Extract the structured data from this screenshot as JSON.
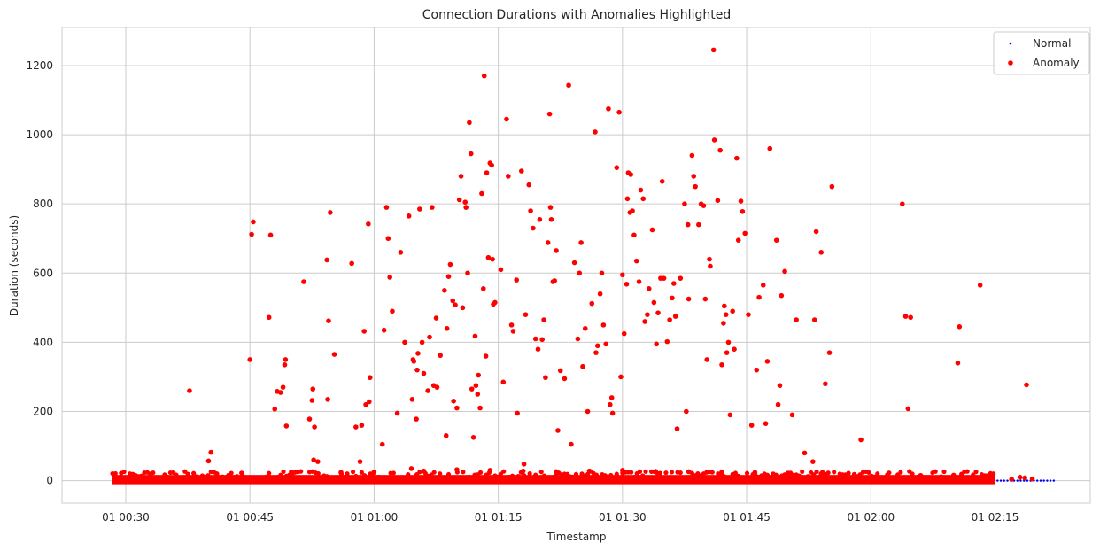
{
  "chart_data": {
    "type": "scatter",
    "title": "Connection Durations with Anomalies Highlighted",
    "xlabel": "Timestamp",
    "ylabel": "Duration (seconds)",
    "x_unit": "minutes",
    "xlim": [
      22.3,
      146.5
    ],
    "ylim": [
      -65,
      1310
    ],
    "x_ticks": [
      {
        "value": 30,
        "label": "01 00:30"
      },
      {
        "value": 45,
        "label": "01 00:45"
      },
      {
        "value": 60,
        "label": "01 01:00"
      },
      {
        "value": 75,
        "label": "01 01:15"
      },
      {
        "value": 90,
        "label": "01 01:30"
      },
      {
        "value": 105,
        "label": "01 01:45"
      },
      {
        "value": 120,
        "label": "01 02:00"
      },
      {
        "value": 135,
        "label": "01 02:15"
      }
    ],
    "y_ticks": [
      0,
      200,
      400,
      600,
      800,
      1000,
      1200
    ],
    "grid": true,
    "legend": {
      "position": "top-right",
      "entries": [
        {
          "name": "Normal",
          "color": "#0000ff"
        },
        {
          "name": "Anomaly",
          "color": "#ff0000"
        }
      ]
    },
    "dense_band": {
      "series": "Anomaly",
      "x_range": [
        28.4,
        135.0
      ],
      "y_range": [
        0,
        30
      ],
      "note": "Dense band of anomaly points with durations near 0"
    },
    "series": [
      {
        "name": "Normal",
        "color": "#0000ff",
        "points": [
          [
            135.3,
            0
          ],
          [
            135.7,
            0
          ],
          [
            136.1,
            0
          ],
          [
            136.5,
            0
          ],
          [
            136.9,
            0
          ],
          [
            137.3,
            0
          ],
          [
            137.7,
            0
          ],
          [
            138.1,
            0
          ],
          [
            138.5,
            0
          ],
          [
            138.9,
            0
          ],
          [
            139.3,
            0
          ],
          [
            139.7,
            0
          ],
          [
            140.1,
            0
          ],
          [
            140.5,
            0
          ],
          [
            140.9,
            0
          ],
          [
            141.3,
            0
          ],
          [
            141.7,
            0
          ],
          [
            142.1,
            0
          ]
        ]
      },
      {
        "name": "Anomaly",
        "color": "#ff0000",
        "points": [
          [
            37.7,
            260
          ],
          [
            40.0,
            57
          ],
          [
            40.3,
            82
          ],
          [
            45.0,
            350
          ],
          [
            45.2,
            712
          ],
          [
            45.4,
            748
          ],
          [
            47.5,
            710
          ],
          [
            47.3,
            472
          ],
          [
            48.0,
            207
          ],
          [
            48.3,
            258
          ],
          [
            48.7,
            255
          ],
          [
            49.0,
            270
          ],
          [
            49.2,
            335
          ],
          [
            49.3,
            350
          ],
          [
            49.4,
            158
          ],
          [
            51.5,
            575
          ],
          [
            52.2,
            178
          ],
          [
            52.5,
            232
          ],
          [
            52.6,
            265
          ],
          [
            52.7,
            60
          ],
          [
            52.8,
            155
          ],
          [
            53.2,
            55
          ],
          [
            54.3,
            638
          ],
          [
            54.4,
            235
          ],
          [
            54.5,
            462
          ],
          [
            54.7,
            775
          ],
          [
            55.2,
            365
          ],
          [
            57.3,
            628
          ],
          [
            57.8,
            155
          ],
          [
            58.3,
            55
          ],
          [
            58.5,
            160
          ],
          [
            58.8,
            432
          ],
          [
            59.0,
            220
          ],
          [
            59.3,
            742
          ],
          [
            59.4,
            228
          ],
          [
            59.5,
            298
          ],
          [
            61.0,
            105
          ],
          [
            61.2,
            435
          ],
          [
            61.5,
            790
          ],
          [
            61.7,
            700
          ],
          [
            61.9,
            588
          ],
          [
            62.2,
            490
          ],
          [
            62.8,
            195
          ],
          [
            63.2,
            660
          ],
          [
            63.7,
            400
          ],
          [
            64.2,
            765
          ],
          [
            64.5,
            35
          ],
          [
            64.6,
            235
          ],
          [
            64.7,
            350
          ],
          [
            64.8,
            345
          ],
          [
            65.1,
            178
          ],
          [
            65.2,
            320
          ],
          [
            65.3,
            368
          ],
          [
            65.5,
            785
          ],
          [
            65.8,
            400
          ],
          [
            66.0,
            310
          ],
          [
            66.5,
            260
          ],
          [
            66.7,
            415
          ],
          [
            67.0,
            790
          ],
          [
            67.2,
            275
          ],
          [
            67.5,
            470
          ],
          [
            67.6,
            270
          ],
          [
            68.0,
            362
          ],
          [
            68.5,
            550
          ],
          [
            68.7,
            130
          ],
          [
            68.8,
            440
          ],
          [
            69.0,
            590
          ],
          [
            69.2,
            625
          ],
          [
            69.5,
            520
          ],
          [
            69.6,
            230
          ],
          [
            69.8,
            508
          ],
          [
            70.0,
            210
          ],
          [
            70.3,
            812
          ],
          [
            70.5,
            880
          ],
          [
            70.7,
            500
          ],
          [
            71.0,
            805
          ],
          [
            71.1,
            790
          ],
          [
            71.3,
            600
          ],
          [
            71.5,
            1035
          ],
          [
            71.7,
            945
          ],
          [
            71.8,
            265
          ],
          [
            72.0,
            125
          ],
          [
            72.2,
            418
          ],
          [
            72.3,
            275
          ],
          [
            72.5,
            250
          ],
          [
            72.6,
            305
          ],
          [
            72.8,
            210
          ],
          [
            73.0,
            830
          ],
          [
            73.2,
            555
          ],
          [
            73.3,
            1170
          ],
          [
            73.5,
            360
          ],
          [
            73.6,
            890
          ],
          [
            73.8,
            645
          ],
          [
            74.0,
            918
          ],
          [
            74.2,
            912
          ],
          [
            74.3,
            640
          ],
          [
            74.4,
            510
          ],
          [
            74.6,
            515
          ],
          [
            75.3,
            610
          ],
          [
            75.6,
            285
          ],
          [
            76.0,
            1045
          ],
          [
            76.2,
            880
          ],
          [
            76.6,
            450
          ],
          [
            76.8,
            432
          ],
          [
            77.2,
            580
          ],
          [
            77.3,
            195
          ],
          [
            77.8,
            895
          ],
          [
            78.1,
            48
          ],
          [
            78.3,
            480
          ],
          [
            78.7,
            855
          ],
          [
            78.9,
            780
          ],
          [
            79.2,
            730
          ],
          [
            79.5,
            410
          ],
          [
            79.8,
            380
          ],
          [
            80.0,
            755
          ],
          [
            80.3,
            408
          ],
          [
            80.5,
            465
          ],
          [
            80.7,
            298
          ],
          [
            81.0,
            688
          ],
          [
            81.2,
            1060
          ],
          [
            81.3,
            790
          ],
          [
            81.4,
            755
          ],
          [
            81.6,
            575
          ],
          [
            81.8,
            578
          ],
          [
            82.0,
            665
          ],
          [
            82.2,
            145
          ],
          [
            82.5,
            318
          ],
          [
            83.0,
            295
          ],
          [
            83.5,
            1143
          ],
          [
            83.8,
            105
          ],
          [
            84.2,
            630
          ],
          [
            84.6,
            410
          ],
          [
            84.8,
            600
          ],
          [
            85.0,
            688
          ],
          [
            85.2,
            330
          ],
          [
            85.5,
            440
          ],
          [
            85.8,
            200
          ],
          [
            86.3,
            512
          ],
          [
            86.7,
            1008
          ],
          [
            86.8,
            370
          ],
          [
            87.0,
            390
          ],
          [
            87.3,
            540
          ],
          [
            87.5,
            600
          ],
          [
            87.7,
            450
          ],
          [
            88.0,
            395
          ],
          [
            88.3,
            1075
          ],
          [
            88.5,
            220
          ],
          [
            88.7,
            240
          ],
          [
            88.8,
            195
          ],
          [
            89.3,
            905
          ],
          [
            89.6,
            1065
          ],
          [
            89.8,
            300
          ],
          [
            90.0,
            595
          ],
          [
            90.2,
            425
          ],
          [
            90.5,
            568
          ],
          [
            90.6,
            815
          ],
          [
            90.7,
            890
          ],
          [
            90.9,
            775
          ],
          [
            91.0,
            885
          ],
          [
            91.2,
            780
          ],
          [
            91.4,
            710
          ],
          [
            91.7,
            635
          ],
          [
            92.0,
            575
          ],
          [
            92.2,
            840
          ],
          [
            92.5,
            815
          ],
          [
            92.7,
            460
          ],
          [
            93.0,
            480
          ],
          [
            93.2,
            555
          ],
          [
            93.6,
            725
          ],
          [
            93.8,
            515
          ],
          [
            94.1,
            395
          ],
          [
            94.3,
            485
          ],
          [
            94.6,
            585
          ],
          [
            94.8,
            865
          ],
          [
            95.0,
            585
          ],
          [
            95.4,
            402
          ],
          [
            95.7,
            465
          ],
          [
            96.0,
            528
          ],
          [
            96.2,
            570
          ],
          [
            96.4,
            475
          ],
          [
            96.6,
            150
          ],
          [
            97.0,
            585
          ],
          [
            97.5,
            800
          ],
          [
            97.7,
            200
          ],
          [
            97.9,
            740
          ],
          [
            98.0,
            525
          ],
          [
            98.4,
            940
          ],
          [
            98.6,
            880
          ],
          [
            98.8,
            850
          ],
          [
            99.2,
            740
          ],
          [
            99.5,
            800
          ],
          [
            99.8,
            795
          ],
          [
            100.0,
            525
          ],
          [
            100.2,
            350
          ],
          [
            100.5,
            640
          ],
          [
            100.6,
            620
          ],
          [
            101.0,
            1245
          ],
          [
            101.1,
            985
          ],
          [
            101.5,
            810
          ],
          [
            101.8,
            955
          ],
          [
            102.0,
            335
          ],
          [
            102.2,
            455
          ],
          [
            102.3,
            505
          ],
          [
            102.5,
            480
          ],
          [
            102.6,
            370
          ],
          [
            102.8,
            400
          ],
          [
            103.0,
            190
          ],
          [
            103.3,
            490
          ],
          [
            103.5,
            380
          ],
          [
            103.8,
            932
          ],
          [
            104.0,
            695
          ],
          [
            104.3,
            808
          ],
          [
            104.5,
            778
          ],
          [
            104.8,
            715
          ],
          [
            105.2,
            480
          ],
          [
            105.6,
            160
          ],
          [
            106.2,
            320
          ],
          [
            106.5,
            530
          ],
          [
            107.0,
            565
          ],
          [
            107.3,
            165
          ],
          [
            107.5,
            345
          ],
          [
            107.8,
            960
          ],
          [
            108.6,
            695
          ],
          [
            108.8,
            220
          ],
          [
            109.0,
            275
          ],
          [
            109.2,
            535
          ],
          [
            109.6,
            605
          ],
          [
            110.5,
            190
          ],
          [
            111.0,
            465
          ],
          [
            112.0,
            80
          ],
          [
            113.0,
            55
          ],
          [
            113.2,
            465
          ],
          [
            113.4,
            720
          ],
          [
            114.0,
            660
          ],
          [
            114.5,
            280
          ],
          [
            115.0,
            370
          ],
          [
            115.3,
            850
          ],
          [
            118.8,
            118
          ],
          [
            123.8,
            800
          ],
          [
            124.2,
            475
          ],
          [
            124.5,
            208
          ],
          [
            124.8,
            472
          ],
          [
            130.5,
            340
          ],
          [
            130.7,
            445
          ],
          [
            133.2,
            565
          ],
          [
            138.8,
            277
          ],
          [
            41.0,
            20
          ],
          [
            44.0,
            22
          ],
          [
            50.0,
            25
          ],
          [
            56.0,
            24
          ],
          [
            60.0,
            25
          ],
          [
            66.0,
            28
          ],
          [
            70.0,
            32
          ],
          [
            74.0,
            30
          ],
          [
            78.0,
            28
          ],
          [
            82.0,
            26
          ],
          [
            86.0,
            28
          ],
          [
            90.0,
            30
          ],
          [
            94.0,
            27
          ],
          [
            98.0,
            26
          ],
          [
            102.0,
            25
          ],
          [
            106.0,
            24
          ],
          [
            110.0,
            22
          ],
          [
            114.0,
            20
          ],
          [
            118.0,
            18
          ],
          [
            122.0,
            17
          ],
          [
            126.0,
            15
          ],
          [
            130.0,
            16
          ],
          [
            134.0,
            14
          ],
          [
            138.0,
            10
          ],
          [
            139.5,
            5
          ],
          [
            138.6,
            8
          ],
          [
            137.0,
            4
          ]
        ]
      }
    ]
  }
}
